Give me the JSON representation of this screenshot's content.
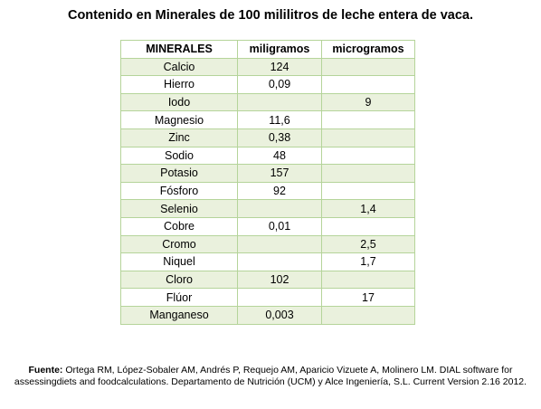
{
  "title": "Contenido en Minerales de 100 mililitros de leche entera de vaca.",
  "table": {
    "headers": [
      "MINERALES",
      "miligramos",
      "microgramos"
    ],
    "rows": [
      [
        "Calcio",
        "124",
        ""
      ],
      [
        "Hierro",
        "0,09",
        ""
      ],
      [
        "Iodo",
        "",
        "9"
      ],
      [
        "Magnesio",
        "11,6",
        ""
      ],
      [
        "Zinc",
        "0,38",
        ""
      ],
      [
        "Sodio",
        "48",
        ""
      ],
      [
        "Potasio",
        "157",
        ""
      ],
      [
        "Fósforo",
        "92",
        ""
      ],
      [
        "Selenio",
        "",
        "1,4"
      ],
      [
        "Cobre",
        "0,01",
        ""
      ],
      [
        "Cromo",
        "",
        "2,5"
      ],
      [
        "Niquel",
        "",
        "1,7"
      ],
      [
        "Cloro",
        "102",
        ""
      ],
      [
        "Flúor",
        "",
        "17"
      ],
      [
        "Manganeso",
        "0,003",
        ""
      ]
    ]
  },
  "source": {
    "label": "Fuente:",
    "text": " Ortega RM, López-Sobaler AM, Andrés P, Requejo AM, Aparicio Vizuete A, Molinero LM. DIAL software for assessingdiets and foodcalculations. Departamento de Nutrición (UCM) y Alce Ingeniería, S.L. Current Version 2.16 2012."
  },
  "colors": {
    "border": "#b5d49a",
    "stripe": "#eaf1dd"
  }
}
